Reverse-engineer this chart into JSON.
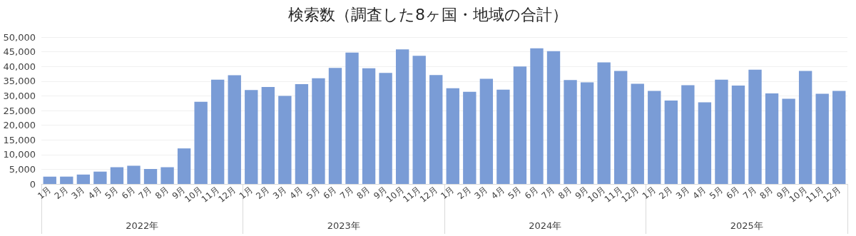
{
  "chart_data": {
    "type": "bar",
    "title": "検索数（調査した8ヶ国・地域の合計）",
    "categories": [
      "1月",
      "2月",
      "3月",
      "4月",
      "5月",
      "6月",
      "7月",
      "8月",
      "9月",
      "10月",
      "11月",
      "12月",
      "1月",
      "2月",
      "3月",
      "4月",
      "5月",
      "6月",
      "7月",
      "8月",
      "9月",
      "10月",
      "11月",
      "12月",
      "1月",
      "2月",
      "3月",
      "4月",
      "5月",
      "6月",
      "7月",
      "8月",
      "9月",
      "10月",
      "11月",
      "12月",
      "1月",
      "2月",
      "3月",
      "4月",
      "5月",
      "6月",
      "7月",
      "8月",
      "9月",
      "10月",
      "11月",
      "12月"
    ],
    "values": [
      2500,
      2500,
      3200,
      4200,
      5700,
      6200,
      5100,
      5700,
      12100,
      28000,
      35500,
      37000,
      32000,
      33000,
      30000,
      34000,
      36000,
      39500,
      44700,
      39400,
      37800,
      45800,
      43600,
      37100,
      32600,
      31400,
      35800,
      32100,
      40000,
      46200,
      45200,
      35400,
      34600,
      41400,
      38500,
      34100,
      31700,
      28400,
      33600,
      27800,
      35500,
      33500,
      38900,
      30800,
      29000,
      38500,
      30700,
      31700
    ],
    "color": "#7a9cd6",
    "annotations": [
      "2022年",
      "2023年",
      "2024年",
      "2025年"
    ],
    "ylim": [
      0,
      50000
    ],
    "yticks": [
      0,
      {
        "value": 5000,
        "label": "5,000"
      },
      {
        "value": 10000,
        "label": "10,000"
      },
      {
        "value": 15000,
        "label": "15,000"
      },
      {
        "value": 20000,
        "label": "20,000"
      },
      {
        "value": 25000,
        "label": "25,000"
      },
      {
        "value": 30000,
        "label": "30,000"
      },
      {
        "value": 35000,
        "label": "35,000"
      },
      {
        "value": 40000,
        "label": "40,000"
      },
      {
        "value": 45000,
        "label": "45,000"
      },
      {
        "value": 50000,
        "label": "50,000"
      }
    ],
    "grid": "y"
  }
}
